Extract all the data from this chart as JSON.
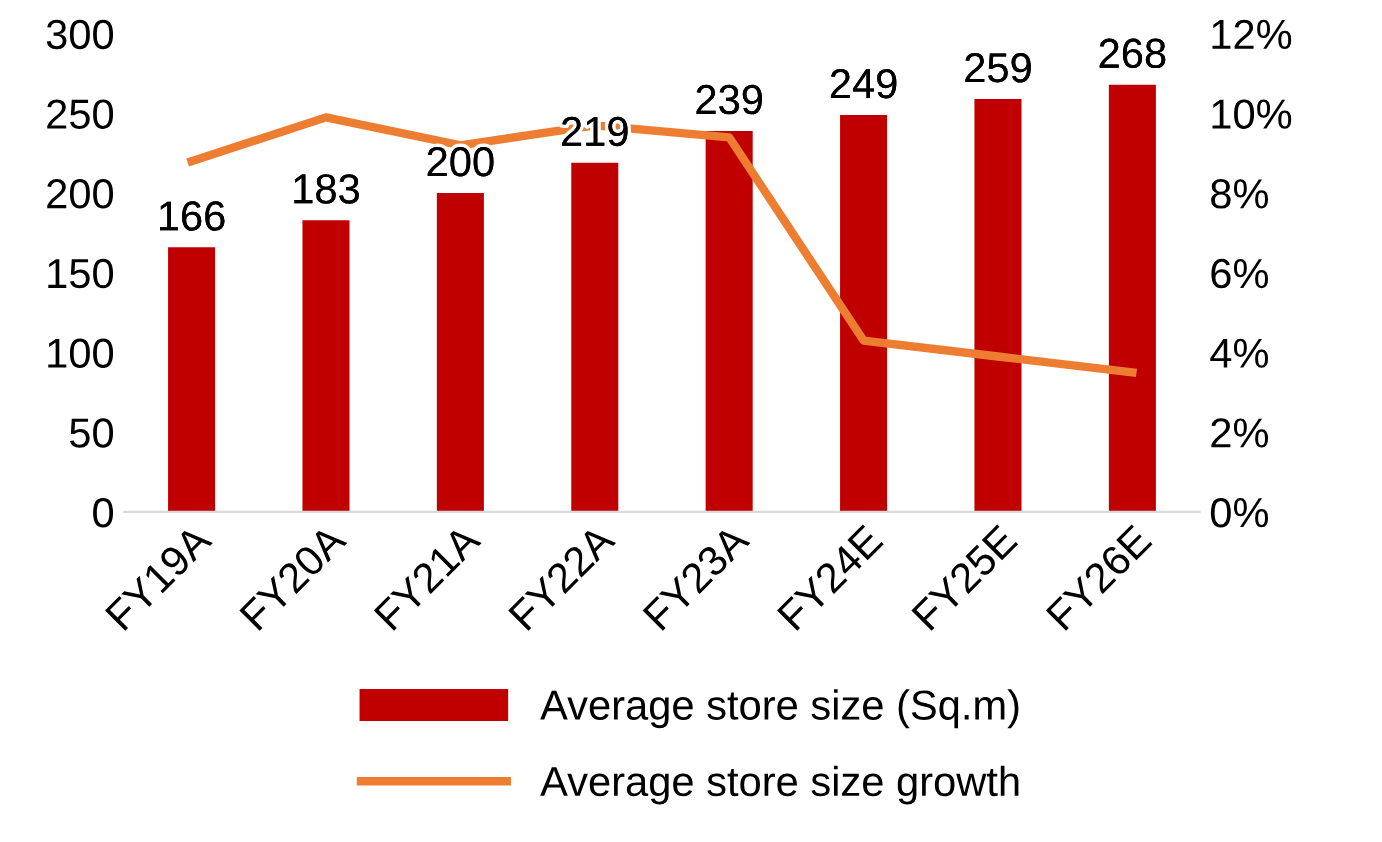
{
  "chart_data": {
    "type": "bar",
    "categories": [
      "FY19A",
      "FY20A",
      "FY21A",
      "FY22A",
      "FY23A",
      "FY24E",
      "FY25E",
      "FY26E"
    ],
    "series": [
      {
        "name": "Average store size (Sq.m)",
        "color": "#c00000",
        "values": [
          166,
          183,
          200,
          219,
          239,
          249,
          259,
          268
        ],
        "value_labels": [
          "166",
          "183",
          "200",
          "219",
          "239",
          "249",
          "259",
          "268"
        ]
      },
      {
        "name": "Average store size growth",
        "type": "line",
        "axis": "y2",
        "color": "#ed7d31",
        "values": [
          8.8,
          9.9,
          9.2,
          9.7,
          9.4,
          4.3,
          3.9,
          3.5
        ]
      }
    ],
    "ylim": [
      0,
      300
    ],
    "yticks": [
      0,
      50,
      100,
      150,
      200,
      250,
      300
    ],
    "y2lim": [
      0,
      12
    ],
    "y2ticks": [
      {
        "value": 0,
        "label": "0%"
      },
      {
        "value": 2,
        "label": "2%"
      },
      {
        "value": 4,
        "label": "4%"
      },
      {
        "value": 6,
        "label": "6%"
      },
      {
        "value": 8,
        "label": "8%"
      },
      {
        "value": 10,
        "label": "10%"
      },
      {
        "value": 12,
        "label": "12%"
      }
    ],
    "legend": "bottom",
    "grid": false,
    "marker": "none",
    "line_style": "solid"
  }
}
